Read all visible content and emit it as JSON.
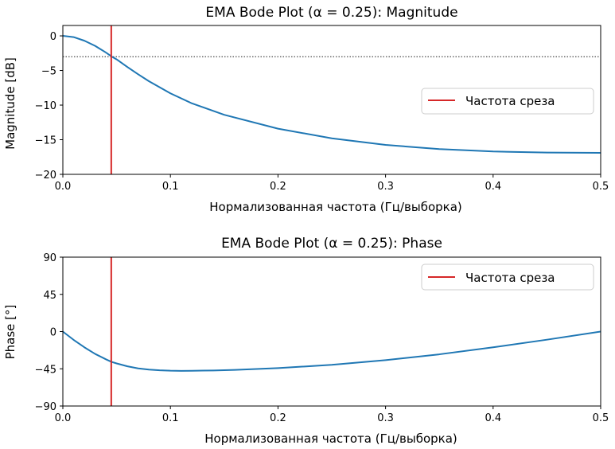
{
  "chart_data": [
    {
      "type": "line",
      "title": "EMA Bode Plot (α = 0.25): Magnitude",
      "xlabel": "Нормализованная частота (Гц/выборка)",
      "ylabel": "Magnitude [dB]",
      "xlim": [
        0,
        0.5
      ],
      "ylim": [
        -20,
        1.5
      ],
      "xticks": [
        0,
        0.1,
        0.2,
        0.3,
        0.4,
        0.5
      ],
      "xtick_labels": [
        "0.0",
        "0.1",
        "0.2",
        "0.3",
        "0.4",
        "0.5"
      ],
      "yticks": [
        0,
        -5,
        -10,
        -15,
        -20
      ],
      "ytick_labels": [
        "0",
        "−5",
        "−10",
        "−15",
        "−20"
      ],
      "grid": false,
      "legend": {
        "position": "center-right",
        "entries": [
          {
            "label": "Частота среза",
            "color": "#d62728"
          }
        ]
      },
      "series": [
        {
          "color": "#1f77b4",
          "x": [
            0,
            0.01,
            0.02,
            0.03,
            0.04,
            0.045,
            0.05,
            0.06,
            0.07,
            0.08,
            0.1,
            0.12,
            0.15,
            0.2,
            0.25,
            0.3,
            0.35,
            0.4,
            0.45,
            0.5
          ],
          "y": [
            0,
            -0.18,
            -0.7,
            -1.45,
            -2.4,
            -2.95,
            -3.4,
            -4.5,
            -5.55,
            -6.55,
            -8.3,
            -9.75,
            -11.4,
            -13.4,
            -14.8,
            -15.75,
            -16.35,
            -16.7,
            -16.85,
            -16.9
          ]
        }
      ],
      "hlines": [
        {
          "y": -3,
          "color": "#000000",
          "style": "dotted"
        }
      ],
      "vlines": [
        {
          "x": 0.045,
          "color": "#d62728",
          "label": "Частота среза"
        }
      ]
    },
    {
      "type": "line",
      "title": "EMA Bode Plot (α = 0.25): Phase",
      "xlabel": "Нормализованная частота (Гц/выборка)",
      "ylabel": "Phase [°]",
      "xlim": [
        0,
        0.5
      ],
      "ylim": [
        -90,
        90
      ],
      "xticks": [
        0,
        0.1,
        0.2,
        0.3,
        0.4,
        0.5
      ],
      "xtick_labels": [
        "0.0",
        "0.1",
        "0.2",
        "0.3",
        "0.4",
        "0.5"
      ],
      "yticks": [
        90,
        45,
        0,
        -45,
        -90
      ],
      "ytick_labels": [
        "90",
        "45",
        "0",
        "−45",
        "−90"
      ],
      "grid": false,
      "legend": {
        "position": "upper-right",
        "entries": [
          {
            "label": "Частота среза",
            "color": "#d62728"
          }
        ]
      },
      "series": [
        {
          "color": "#1f77b4",
          "x": [
            0,
            0.01,
            0.02,
            0.03,
            0.04,
            0.045,
            0.05,
            0.06,
            0.07,
            0.08,
            0.09,
            0.1,
            0.11,
            0.12,
            0.14,
            0.16,
            0.2,
            0.25,
            0.3,
            0.35,
            0.4,
            0.45,
            0.5
          ],
          "y": [
            0,
            -10,
            -19,
            -27,
            -33.5,
            -36.5,
            -38.5,
            -42,
            -44.5,
            -46,
            -46.8,
            -47.3,
            -47.5,
            -47.4,
            -47,
            -46.3,
            -44.2,
            -40.2,
            -34.5,
            -27.5,
            -19,
            -9.8,
            0
          ]
        }
      ],
      "vlines": [
        {
          "x": 0.045,
          "color": "#d62728",
          "label": "Частота среза"
        }
      ]
    }
  ]
}
